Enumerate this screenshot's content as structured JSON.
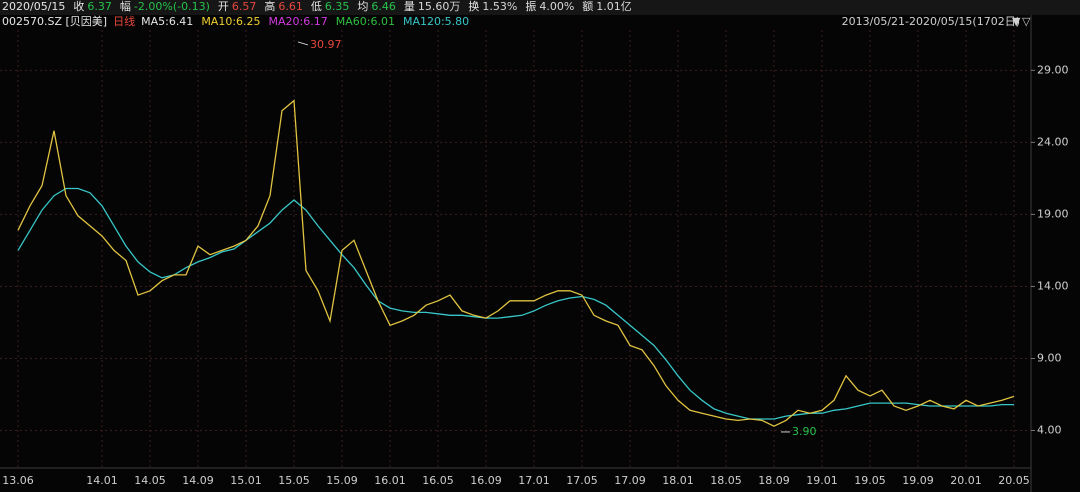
{
  "header": {
    "date": "2020/05/15",
    "items": [
      {
        "label": "收",
        "value": "6.37",
        "color": "#27c24c"
      },
      {
        "label": "幅",
        "value": "-2.00%(-0.13)",
        "color": "#27c24c"
      },
      {
        "label": "开",
        "value": "6.57",
        "color": "#e8473d"
      },
      {
        "label": "高",
        "value": "6.61",
        "color": "#e8473d"
      },
      {
        "label": "低",
        "value": "6.35",
        "color": "#27c24c"
      },
      {
        "label": "均",
        "value": "6.46",
        "color": "#27c24c"
      },
      {
        "label": "量",
        "value": "15.60万",
        "color": "#d8d8d8"
      },
      {
        "label": "换",
        "value": "1.53%",
        "color": "#d8d8d8"
      },
      {
        "label": "振",
        "value": "4.00%",
        "color": "#d8d8d8"
      },
      {
        "label": "额",
        "value": "1.01亿",
        "color": "#d8d8d8"
      }
    ]
  },
  "chart_data": {
    "type": "line",
    "code": "002570.SZ [贝因美]",
    "range_label": "2013/05/21-2020/05/15(1702日)",
    "legend_extra": [
      {
        "text": "MA5:6.41",
        "color": "#e6e6e6"
      },
      {
        "text": "MA10:6.25",
        "color": "#f0d030"
      },
      {
        "text": "MA20:6.17",
        "color": "#d23be0"
      },
      {
        "text": "MA60:6.01",
        "color": "#2fbf3f"
      }
    ],
    "categories": [
      "13.06",
      null,
      null,
      null,
      null,
      null,
      null,
      "14.01",
      null,
      null,
      null,
      "14.05",
      null,
      null,
      null,
      "14.09",
      null,
      null,
      null,
      "15.01",
      null,
      null,
      null,
      "15.05",
      null,
      null,
      null,
      "15.09",
      null,
      null,
      null,
      "16.01",
      null,
      null,
      null,
      "16.05",
      null,
      null,
      null,
      "16.09",
      null,
      null,
      null,
      "17.01",
      null,
      null,
      null,
      "17.05",
      null,
      null,
      null,
      "17.09",
      null,
      null,
      null,
      "18.01",
      null,
      null,
      null,
      "18.05",
      null,
      null,
      null,
      "18.09",
      null,
      null,
      null,
      "19.01",
      null,
      null,
      null,
      "19.05",
      null,
      null,
      null,
      "19.09",
      null,
      null,
      null,
      "20.01",
      null,
      null,
      null,
      "20.05"
    ],
    "series": [
      {
        "name": "日线",
        "color": "#e0c341",
        "label_color": "#e8473d",
        "values": [
          17.9,
          19.6,
          21,
          24.8,
          20.3,
          18.9,
          18.2,
          17.5,
          16.5,
          15.8,
          13.4,
          13.7,
          14.4,
          14.8,
          14.8,
          16.8,
          16.2,
          16.5,
          16.8,
          17.2,
          18.2,
          20.3,
          26.2,
          26.9,
          15.1,
          13.7,
          11.6,
          16.5,
          17.2,
          15.1,
          13,
          11.3,
          11.6,
          12,
          12.7,
          13,
          13.4,
          12.3,
          12,
          11.8,
          12.3,
          13,
          13,
          13,
          13.4,
          13.7,
          13.7,
          13.4,
          12,
          11.6,
          11.3,
          9.9,
          9.6,
          8.5,
          7.1,
          6.1,
          5.4,
          5.2,
          5,
          4.8,
          4.7,
          4.8,
          4.7,
          4.3,
          4.7,
          5.4,
          5.2,
          5.4,
          6.1,
          7.8,
          6.8,
          6.4,
          6.8,
          5.7,
          5.4,
          5.7,
          6.1,
          5.7,
          5.5,
          6.1,
          5.7,
          5.9,
          6.1,
          6.37
        ]
      },
      {
        "name": "MA120:5.80",
        "color": "#38c6c8",
        "values": [
          16.5,
          17.9,
          19.3,
          20.3,
          20.8,
          20.8,
          20.5,
          19.6,
          18.2,
          16.8,
          15.7,
          15,
          14.6,
          14.8,
          15.3,
          15.7,
          16,
          16.4,
          16.6,
          17.2,
          17.8,
          18.4,
          19.3,
          20,
          19.3,
          18.2,
          17.2,
          16.2,
          15.3,
          14.1,
          13,
          12.5,
          12.3,
          12.2,
          12.2,
          12.1,
          12,
          12,
          11.9,
          11.8,
          11.8,
          11.9,
          12,
          12.3,
          12.7,
          13,
          13.2,
          13.3,
          13.1,
          12.7,
          12,
          11.3,
          10.6,
          9.9,
          8.9,
          7.8,
          6.8,
          6.1,
          5.5,
          5.2,
          5,
          4.8,
          4.8,
          4.8,
          5,
          5.1,
          5.2,
          5.2,
          5.4,
          5.5,
          5.7,
          5.9,
          5.9,
          5.9,
          5.9,
          5.8,
          5.7,
          5.7,
          5.7,
          5.7,
          5.7,
          5.7,
          5.8,
          5.8
        ]
      }
    ],
    "high": {
      "value": 30.97,
      "color": "#e8473d"
    },
    "low": {
      "value": 3.9,
      "label": "3.90",
      "color": "#27c24c"
    },
    "ylim": [
      2.3,
      31.8
    ],
    "yticks": [
      {
        "value": 4,
        "label": "4.00"
      },
      {
        "value": 9,
        "label": "9.00"
      },
      {
        "value": 14,
        "label": "14.00"
      },
      {
        "value": 19,
        "label": "19.00"
      },
      {
        "value": 24,
        "label": "24.00"
      },
      {
        "value": 29,
        "label": "29.00"
      }
    ],
    "grid": true
  }
}
